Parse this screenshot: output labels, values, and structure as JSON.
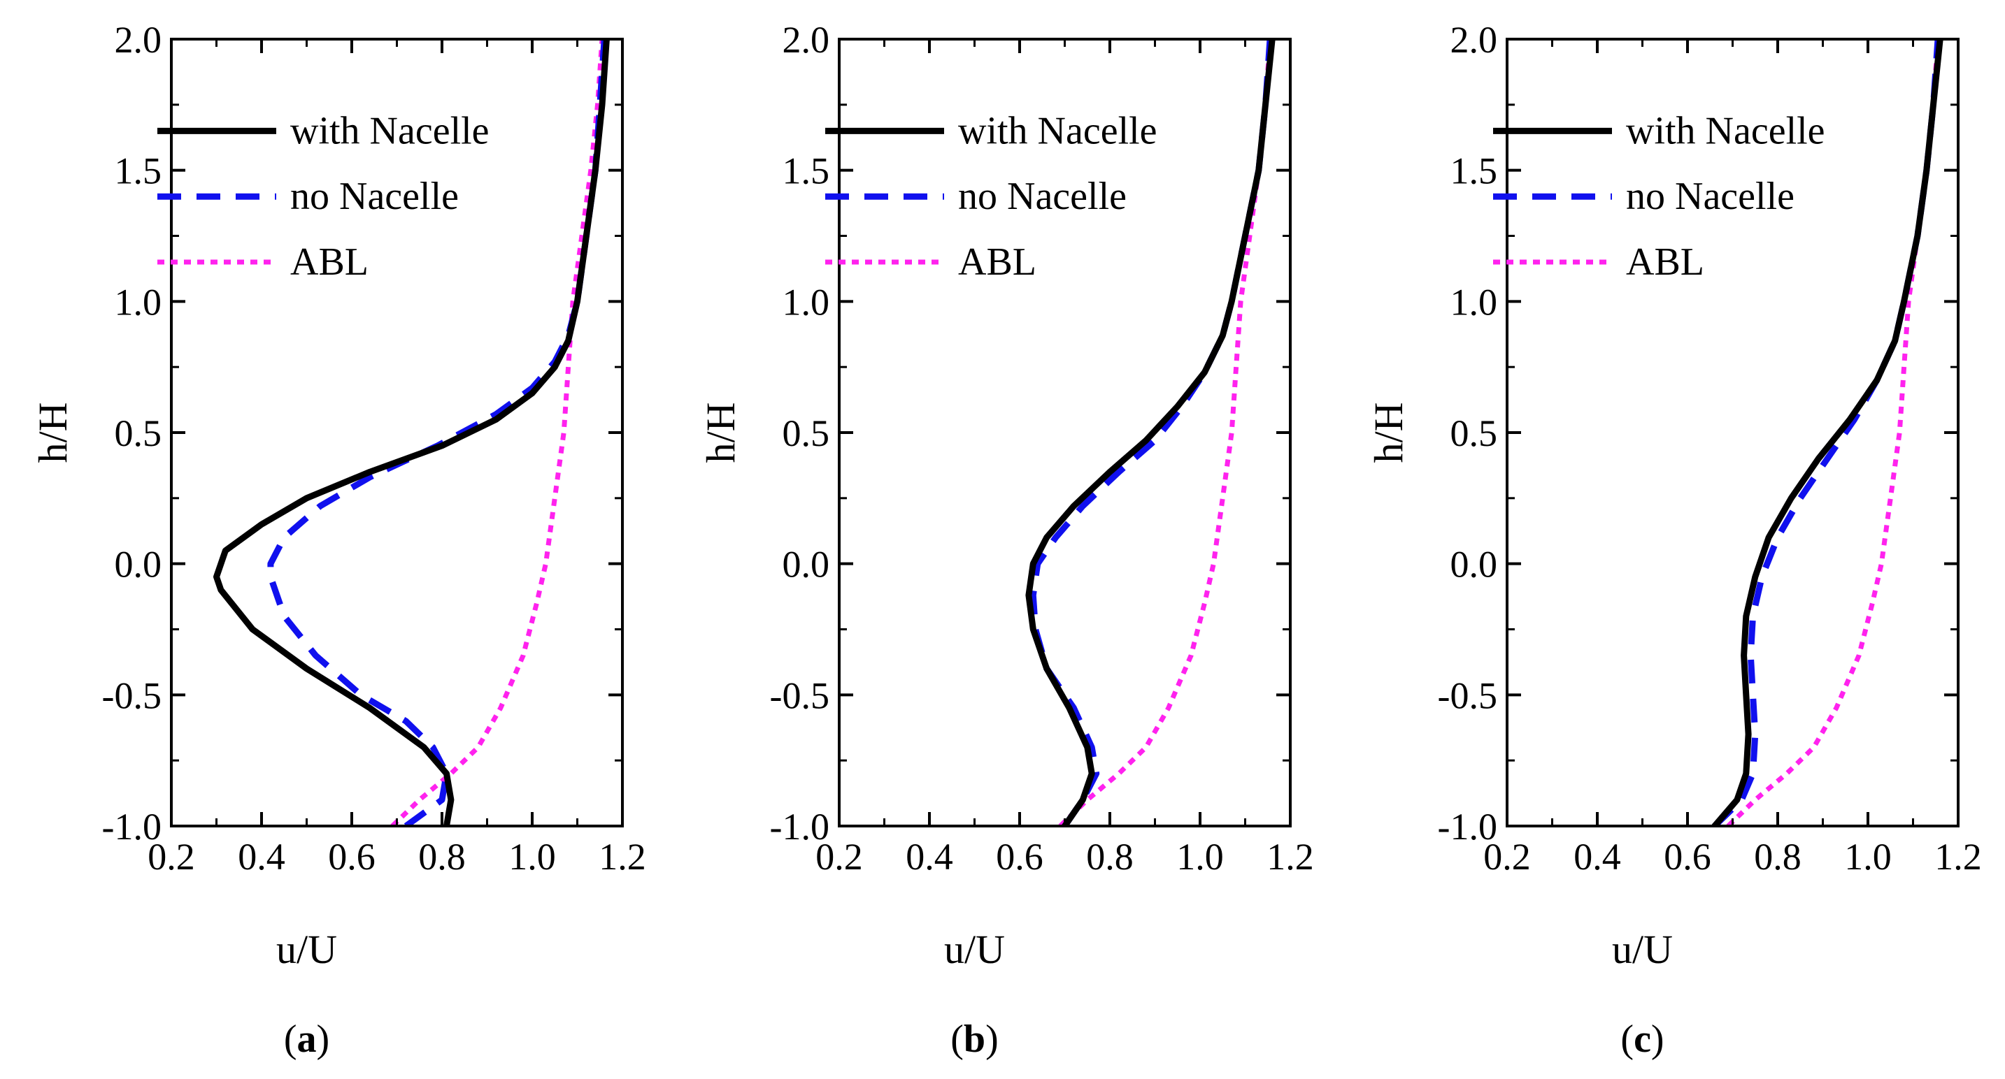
{
  "figure": {
    "panel_labels": [
      {
        "open": "(",
        "letter": "a",
        "close": ")"
      },
      {
        "open": "(",
        "letter": "b",
        "close": ")"
      },
      {
        "open": "(",
        "letter": "c",
        "close": ")"
      }
    ]
  },
  "colors": {
    "with_nacelle": "#000000",
    "no_nacelle": "#1010ee",
    "abl": "#ff22ee",
    "axis": "#000000"
  },
  "chart_data": [
    {
      "type": "line",
      "title": "(a)",
      "xlabel": "u/U",
      "ylabel": "h/H",
      "xlim": [
        0.2,
        1.2
      ],
      "ylim": [
        -1.0,
        2.0
      ],
      "x_ticks": [
        "0.2",
        "0.4",
        "0.6",
        "0.8",
        "1.0",
        "1.2"
      ],
      "y_ticks": [
        "2.0",
        "1.5",
        "1.0",
        "0.5",
        "0.0",
        "-0.5",
        "-1.0"
      ],
      "legend": [
        "with Nacelle",
        "no Nacelle",
        "ABL"
      ],
      "legend_position": "top-left",
      "series": [
        {
          "name": "with Nacelle",
          "style": "solid",
          "points": [
            [
              0.81,
              -1.0
            ],
            [
              0.82,
              -0.9
            ],
            [
              0.81,
              -0.8
            ],
            [
              0.76,
              -0.7
            ],
            [
              0.64,
              -0.55
            ],
            [
              0.5,
              -0.4
            ],
            [
              0.38,
              -0.25
            ],
            [
              0.31,
              -0.1
            ],
            [
              0.3,
              -0.05
            ],
            [
              0.32,
              0.05
            ],
            [
              0.4,
              0.15
            ],
            [
              0.5,
              0.25
            ],
            [
              0.64,
              0.35
            ],
            [
              0.8,
              0.45
            ],
            [
              0.92,
              0.55
            ],
            [
              1.0,
              0.65
            ],
            [
              1.05,
              0.75
            ],
            [
              1.08,
              0.85
            ],
            [
              1.1,
              1.0
            ],
            [
              1.12,
              1.25
            ],
            [
              1.14,
              1.5
            ],
            [
              1.155,
              1.75
            ],
            [
              1.165,
              2.0
            ]
          ]
        },
        {
          "name": "no Nacelle",
          "style": "dashed",
          "points": [
            [
              0.72,
              -1.0
            ],
            [
              0.8,
              -0.9
            ],
            [
              0.81,
              -0.8
            ],
            [
              0.78,
              -0.7
            ],
            [
              0.72,
              -0.6
            ],
            [
              0.62,
              -0.5
            ],
            [
              0.52,
              -0.35
            ],
            [
              0.45,
              -0.2
            ],
            [
              0.42,
              -0.05
            ],
            [
              0.42,
              0.0
            ],
            [
              0.45,
              0.1
            ],
            [
              0.53,
              0.22
            ],
            [
              0.64,
              0.33
            ],
            [
              0.79,
              0.45
            ],
            [
              0.92,
              0.57
            ],
            [
              1.0,
              0.67
            ],
            [
              1.05,
              0.77
            ],
            [
              1.08,
              0.87
            ],
            [
              1.1,
              1.0
            ],
            [
              1.12,
              1.25
            ],
            [
              1.14,
              1.5
            ],
            [
              1.15,
              1.75
            ],
            [
              1.16,
              2.0
            ]
          ]
        },
        {
          "name": "ABL",
          "style": "dotted",
          "points": [
            [
              0.69,
              -1.0
            ],
            [
              0.75,
              -0.9
            ],
            [
              0.82,
              -0.8
            ],
            [
              0.88,
              -0.7
            ],
            [
              0.93,
              -0.55
            ],
            [
              0.98,
              -0.35
            ],
            [
              1.01,
              -0.15
            ],
            [
              1.03,
              0.0
            ],
            [
              1.05,
              0.25
            ],
            [
              1.07,
              0.5
            ],
            [
              1.08,
              0.75
            ],
            [
              1.09,
              1.0
            ],
            [
              1.11,
              1.25
            ],
            [
              1.13,
              1.5
            ],
            [
              1.145,
              1.75
            ],
            [
              1.155,
              2.0
            ]
          ]
        }
      ]
    },
    {
      "type": "line",
      "title": "(b)",
      "xlabel": "u/U",
      "ylabel": "h/H",
      "xlim": [
        0.2,
        1.2
      ],
      "ylim": [
        -1.0,
        2.0
      ],
      "x_ticks": [
        "0.2",
        "0.4",
        "0.6",
        "0.8",
        "1.0",
        "1.2"
      ],
      "y_ticks": [
        "2.0",
        "1.5",
        "1.0",
        "0.5",
        "0.0",
        "-0.5",
        "-1.0"
      ],
      "legend": [
        "with Nacelle",
        "no Nacelle",
        "ABL"
      ],
      "legend_position": "top-left",
      "series": [
        {
          "name": "with Nacelle",
          "style": "solid",
          "points": [
            [
              0.7,
              -1.0
            ],
            [
              0.74,
              -0.9
            ],
            [
              0.76,
              -0.8
            ],
            [
              0.75,
              -0.7
            ],
            [
              0.71,
              -0.55
            ],
            [
              0.66,
              -0.4
            ],
            [
              0.63,
              -0.25
            ],
            [
              0.62,
              -0.12
            ],
            [
              0.63,
              0.0
            ],
            [
              0.66,
              0.1
            ],
            [
              0.72,
              0.22
            ],
            [
              0.8,
              0.35
            ],
            [
              0.88,
              0.47
            ],
            [
              0.95,
              0.6
            ],
            [
              1.01,
              0.73
            ],
            [
              1.05,
              0.87
            ],
            [
              1.07,
              1.0
            ],
            [
              1.1,
              1.25
            ],
            [
              1.13,
              1.5
            ],
            [
              1.145,
              1.75
            ],
            [
              1.16,
              2.0
            ]
          ]
        },
        {
          "name": "no Nacelle",
          "style": "dashed",
          "points": [
            [
              0.7,
              -1.0
            ],
            [
              0.74,
              -0.9
            ],
            [
              0.77,
              -0.8
            ],
            [
              0.76,
              -0.7
            ],
            [
              0.72,
              -0.55
            ],
            [
              0.66,
              -0.4
            ],
            [
              0.635,
              -0.25
            ],
            [
              0.63,
              -0.12
            ],
            [
              0.64,
              0.0
            ],
            [
              0.68,
              0.1
            ],
            [
              0.74,
              0.22
            ],
            [
              0.82,
              0.35
            ],
            [
              0.9,
              0.47
            ],
            [
              0.96,
              0.6
            ],
            [
              1.01,
              0.73
            ],
            [
              1.05,
              0.87
            ],
            [
              1.07,
              1.0
            ],
            [
              1.1,
              1.25
            ],
            [
              1.13,
              1.5
            ],
            [
              1.145,
              1.75
            ],
            [
              1.155,
              2.0
            ]
          ]
        },
        {
          "name": "ABL",
          "style": "dotted",
          "points": [
            [
              0.69,
              -1.0
            ],
            [
              0.75,
              -0.9
            ],
            [
              0.82,
              -0.8
            ],
            [
              0.88,
              -0.7
            ],
            [
              0.93,
              -0.55
            ],
            [
              0.98,
              -0.35
            ],
            [
              1.01,
              -0.15
            ],
            [
              1.03,
              0.0
            ],
            [
              1.05,
              0.25
            ],
            [
              1.07,
              0.5
            ],
            [
              1.08,
              0.75
            ],
            [
              1.09,
              1.0
            ],
            [
              1.11,
              1.25
            ],
            [
              1.13,
              1.5
            ],
            [
              1.145,
              1.75
            ],
            [
              1.155,
              2.0
            ]
          ]
        }
      ]
    },
    {
      "type": "line",
      "title": "(c)",
      "xlabel": "u/U",
      "ylabel": "h/H",
      "xlim": [
        0.2,
        1.2
      ],
      "ylim": [
        -1.0,
        2.0
      ],
      "x_ticks": [
        "0.2",
        "0.4",
        "0.6",
        "0.8",
        "1.0",
        "1.2"
      ],
      "y_ticks": [
        "2.0",
        "1.5",
        "1.0",
        "0.5",
        "0.0",
        "-0.5",
        "-1.0"
      ],
      "legend": [
        "with Nacelle",
        "no Nacelle",
        "ABL"
      ],
      "legend_position": "top-left",
      "series": [
        {
          "name": "with Nacelle",
          "style": "solid",
          "points": [
            [
              0.66,
              -1.0
            ],
            [
              0.71,
              -0.9
            ],
            [
              0.73,
              -0.8
            ],
            [
              0.735,
              -0.65
            ],
            [
              0.73,
              -0.5
            ],
            [
              0.725,
              -0.35
            ],
            [
              0.73,
              -0.2
            ],
            [
              0.75,
              -0.05
            ],
            [
              0.78,
              0.1
            ],
            [
              0.83,
              0.25
            ],
            [
              0.89,
              0.4
            ],
            [
              0.96,
              0.55
            ],
            [
              1.02,
              0.7
            ],
            [
              1.06,
              0.85
            ],
            [
              1.08,
              1.0
            ],
            [
              1.11,
              1.25
            ],
            [
              1.13,
              1.5
            ],
            [
              1.145,
              1.75
            ],
            [
              1.16,
              2.0
            ]
          ]
        },
        {
          "name": "no Nacelle",
          "style": "dashed",
          "points": [
            [
              0.66,
              -1.0
            ],
            [
              0.72,
              -0.9
            ],
            [
              0.745,
              -0.8
            ],
            [
              0.75,
              -0.65
            ],
            [
              0.745,
              -0.5
            ],
            [
              0.74,
              -0.35
            ],
            [
              0.745,
              -0.2
            ],
            [
              0.765,
              -0.05
            ],
            [
              0.8,
              0.1
            ],
            [
              0.85,
              0.25
            ],
            [
              0.91,
              0.4
            ],
            [
              0.97,
              0.55
            ],
            [
              1.02,
              0.7
            ],
            [
              1.06,
              0.85
            ],
            [
              1.08,
              1.0
            ],
            [
              1.11,
              1.25
            ],
            [
              1.13,
              1.5
            ],
            [
              1.145,
              1.75
            ],
            [
              1.155,
              2.0
            ]
          ]
        },
        {
          "name": "ABL",
          "style": "dotted",
          "points": [
            [
              0.69,
              -1.0
            ],
            [
              0.75,
              -0.9
            ],
            [
              0.82,
              -0.8
            ],
            [
              0.88,
              -0.7
            ],
            [
              0.93,
              -0.55
            ],
            [
              0.98,
              -0.35
            ],
            [
              1.01,
              -0.15
            ],
            [
              1.03,
              0.0
            ],
            [
              1.05,
              0.25
            ],
            [
              1.07,
              0.5
            ],
            [
              1.08,
              0.75
            ],
            [
              1.09,
              1.0
            ],
            [
              1.11,
              1.25
            ],
            [
              1.13,
              1.5
            ],
            [
              1.145,
              1.75
            ],
            [
              1.155,
              2.0
            ]
          ]
        }
      ]
    }
  ]
}
